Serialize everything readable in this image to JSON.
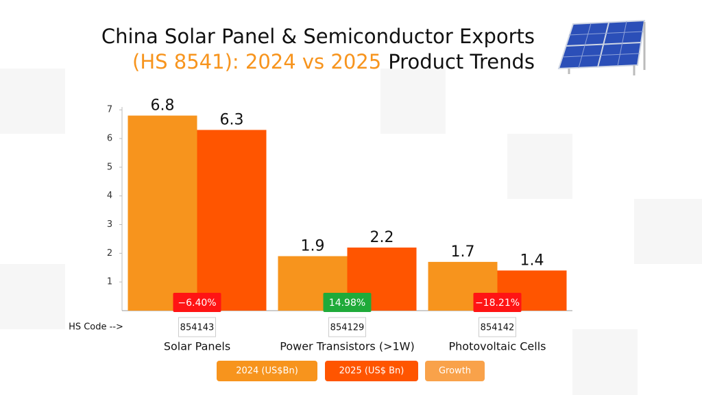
{
  "chart_data": {
    "type": "bar",
    "title": "China Solar Panel & Semiconductor Exports",
    "title_highlight": "(HS 8541): 2024 vs 2025",
    "title_rest": "Product Trends",
    "categories": [
      "Solar Panels",
      "Power Transistors (>1W)",
      "Photovoltaic Cells"
    ],
    "hs_code_label": "HS Code -->",
    "hs_codes": [
      "854143",
      "854129",
      "854142"
    ],
    "series": [
      {
        "name": "2024 (US$Bn)",
        "color": "#f7941d",
        "values": [
          6.8,
          1.9,
          1.7
        ]
      },
      {
        "name": "2025 (US$ Bn)",
        "color": "#ff5500",
        "values": [
          6.3,
          2.2,
          1.4
        ]
      }
    ],
    "growth": {
      "name": "Growth",
      "color": "#f9a24a",
      "values": [
        -6.4,
        14.98,
        -18.21
      ],
      "value_labels": [
        "−6.40%",
        "14.98%",
        "−18.21%"
      ]
    },
    "ylim": [
      0,
      7.1
    ],
    "yticks": [
      1,
      2,
      3,
      4,
      5,
      6,
      7
    ]
  }
}
